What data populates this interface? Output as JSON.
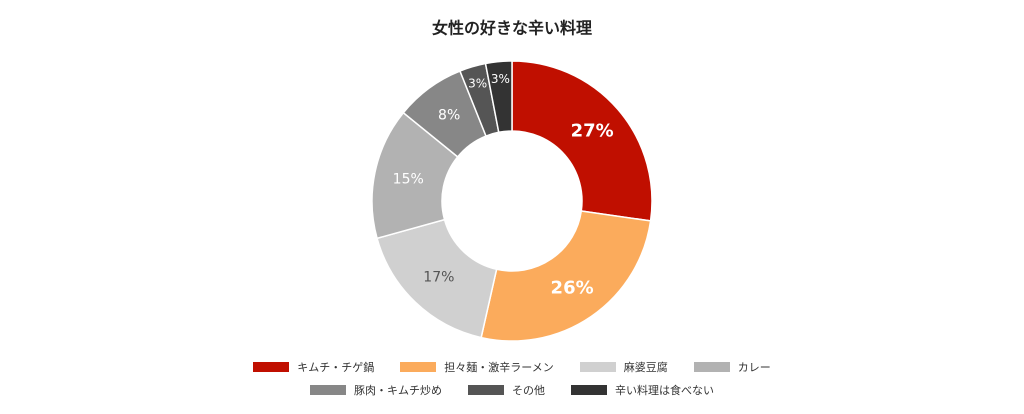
{
  "chart_data": {
    "type": "donut",
    "title": "女性の好きな辛い料理",
    "categories": [
      "キムチ・チゲ鍋",
      "担々麺・激辛ラーメン",
      "麻婆豆腐",
      "カレー",
      "豚肉・キムチ炒め",
      "その他",
      "辛い料理は食べない"
    ],
    "values": [
      27,
      26,
      17,
      15,
      8,
      3,
      3
    ],
    "value_labels": [
      "27%",
      "26%",
      "17%",
      "15%",
      "8%",
      "3%",
      "3%"
    ],
    "colors": [
      "#c00f00",
      "#fbab5c",
      "#d0d0d0",
      "#b2b2b2",
      "#878787",
      "#555555",
      "#333333"
    ]
  }
}
